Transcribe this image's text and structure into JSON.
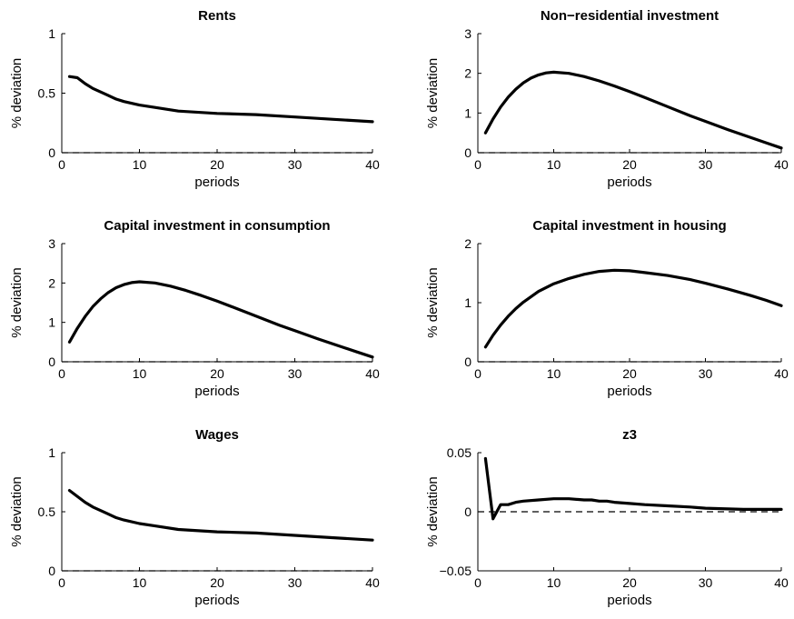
{
  "chart_data": [
    {
      "type": "line",
      "title": "Rents",
      "xlabel": "periods",
      "ylabel": "% deviation",
      "xlim": [
        0,
        40
      ],
      "ylim": [
        0,
        1
      ],
      "xticks": [
        "0",
        "10",
        "20",
        "30",
        "40"
      ],
      "yticks": [
        "0",
        "0.5",
        "1"
      ],
      "zero_line": "dashed",
      "series": [
        {
          "color": "#000000",
          "x": [
            1,
            2,
            3,
            4,
            5,
            6,
            7,
            8,
            10,
            12,
            15,
            20,
            25,
            30,
            35,
            40
          ],
          "values": [
            0.64,
            0.63,
            0.58,
            0.54,
            0.51,
            0.48,
            0.45,
            0.43,
            0.4,
            0.38,
            0.35,
            0.33,
            0.32,
            0.3,
            0.28,
            0.26
          ]
        }
      ]
    },
    {
      "type": "line",
      "title": "Non−residential investment",
      "xlabel": "periods",
      "ylabel": "% deviation",
      "xlim": [
        0,
        40
      ],
      "ylim": [
        0,
        3
      ],
      "xticks": [
        "0",
        "10",
        "20",
        "30",
        "40"
      ],
      "yticks": [
        "0",
        "1",
        "2",
        "3"
      ],
      "zero_line": "dashed",
      "series": [
        {
          "color": "#000000",
          "x": [
            1,
            2,
            3,
            4,
            5,
            6,
            7,
            8,
            9,
            10,
            12,
            14,
            16,
            18,
            20,
            22,
            25,
            28,
            30,
            33,
            36,
            38,
            40
          ],
          "values": [
            0.5,
            0.85,
            1.15,
            1.4,
            1.6,
            1.76,
            1.88,
            1.96,
            2.01,
            2.03,
            2.0,
            1.92,
            1.81,
            1.68,
            1.54,
            1.39,
            1.16,
            0.93,
            0.79,
            0.58,
            0.38,
            0.25,
            0.12
          ]
        }
      ]
    },
    {
      "type": "line",
      "title": "Capital investment in consumption",
      "xlabel": "periods",
      "ylabel": "% deviation",
      "xlim": [
        0,
        40
      ],
      "ylim": [
        0,
        3
      ],
      "xticks": [
        "0",
        "10",
        "20",
        "30",
        "40"
      ],
      "yticks": [
        "0",
        "1",
        "2",
        "3"
      ],
      "zero_line": "dashed",
      "series": [
        {
          "color": "#000000",
          "x": [
            1,
            2,
            3,
            4,
            5,
            6,
            7,
            8,
            9,
            10,
            12,
            14,
            16,
            18,
            20,
            22,
            25,
            28,
            30,
            33,
            36,
            38,
            40
          ],
          "values": [
            0.5,
            0.85,
            1.15,
            1.4,
            1.6,
            1.76,
            1.88,
            1.96,
            2.01,
            2.03,
            2.0,
            1.92,
            1.81,
            1.68,
            1.54,
            1.39,
            1.16,
            0.93,
            0.79,
            0.58,
            0.38,
            0.25,
            0.12
          ]
        }
      ]
    },
    {
      "type": "line",
      "title": "Capital investment in housing",
      "xlabel": "periods",
      "ylabel": "% deviation",
      "xlim": [
        0,
        40
      ],
      "ylim": [
        0,
        2
      ],
      "xticks": [
        "0",
        "10",
        "20",
        "30",
        "40"
      ],
      "yticks": [
        "0",
        "1",
        "2"
      ],
      "zero_line": "dashed",
      "series": [
        {
          "color": "#000000",
          "x": [
            1,
            2,
            3,
            4,
            5,
            6,
            8,
            10,
            12,
            14,
            16,
            18,
            20,
            22,
            25,
            28,
            30,
            33,
            36,
            38,
            40
          ],
          "values": [
            0.25,
            0.45,
            0.62,
            0.77,
            0.9,
            1.01,
            1.19,
            1.32,
            1.41,
            1.48,
            1.53,
            1.55,
            1.54,
            1.51,
            1.46,
            1.39,
            1.33,
            1.23,
            1.12,
            1.04,
            0.95
          ]
        }
      ]
    },
    {
      "type": "line",
      "title": "Wages",
      "xlabel": "periods",
      "ylabel": "% deviation",
      "xlim": [
        0,
        40
      ],
      "ylim": [
        0,
        1
      ],
      "xticks": [
        "0",
        "10",
        "20",
        "30",
        "40"
      ],
      "yticks": [
        "0",
        "0.5",
        "1"
      ],
      "zero_line": "dashed",
      "series": [
        {
          "color": "#000000",
          "x": [
            1,
            2,
            3,
            4,
            5,
            6,
            7,
            8,
            10,
            12,
            15,
            20,
            25,
            30,
            35,
            40
          ],
          "values": [
            0.68,
            0.63,
            0.58,
            0.54,
            0.51,
            0.48,
            0.45,
            0.43,
            0.4,
            0.38,
            0.35,
            0.33,
            0.32,
            0.3,
            0.28,
            0.26
          ]
        }
      ]
    },
    {
      "type": "line",
      "title": "z3",
      "xlabel": "periods",
      "ylabel": "% deviation",
      "xlim": [
        0,
        40
      ],
      "ylim": [
        -0.05,
        0.05
      ],
      "xticks": [
        "0",
        "10",
        "20",
        "30",
        "40"
      ],
      "yticks": [
        "−0.05",
        "0",
        "0.05"
      ],
      "zero_line": "dashed",
      "series": [
        {
          "color": "#000000",
          "x": [
            1,
            2,
            3,
            4,
            5,
            6,
            8,
            10,
            12,
            14,
            15,
            16,
            17,
            18,
            20,
            22,
            25,
            28,
            30,
            35,
            40
          ],
          "values": [
            0.045,
            -0.006,
            0.006,
            0.006,
            0.008,
            0.009,
            0.01,
            0.011,
            0.011,
            0.01,
            0.01,
            0.009,
            0.009,
            0.008,
            0.007,
            0.006,
            0.005,
            0.004,
            0.003,
            0.002,
            0.002
          ]
        }
      ]
    }
  ]
}
